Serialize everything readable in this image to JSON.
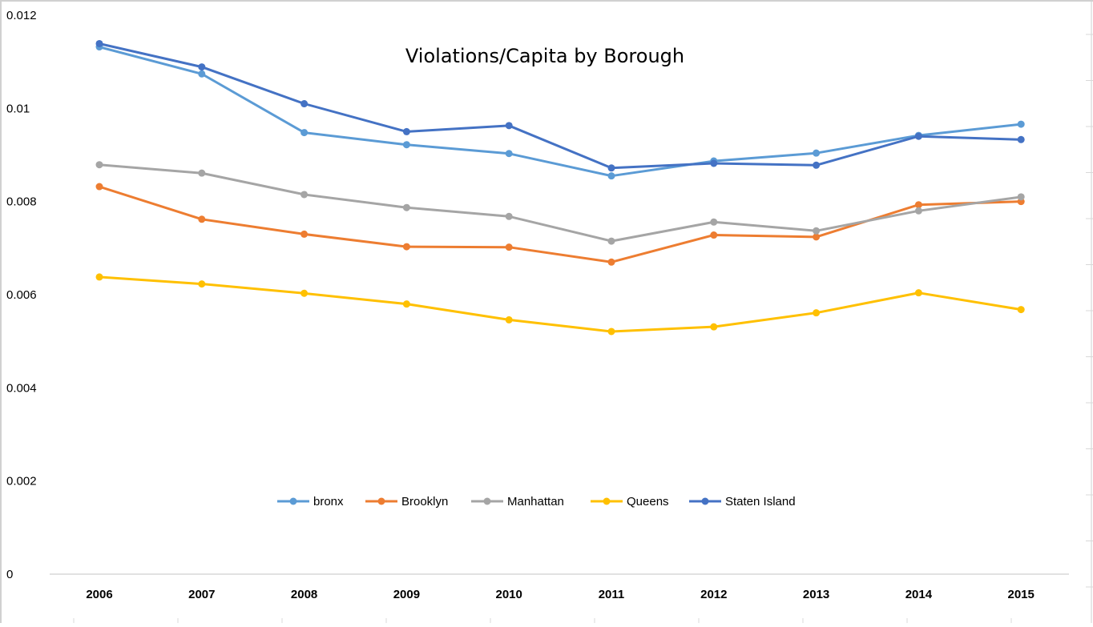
{
  "chart_data": {
    "type": "line",
    "title": "Violations/Capita by Borough",
    "xlabel": "",
    "ylabel": "",
    "categories": [
      "2006",
      "2007",
      "2008",
      "2009",
      "2010",
      "2011",
      "2012",
      "2013",
      "2014",
      "2015"
    ],
    "ylim": [
      0,
      0.012
    ],
    "y_ticks": [
      "0",
      "0.002",
      "0.004",
      "0.006",
      "0.008",
      "0.01",
      "0.012"
    ],
    "grid": false,
    "legend_position": "bottom-center",
    "series": [
      {
        "name": "bronx",
        "color": "#5B9BD5",
        "values": [
          0.01132,
          0.01074,
          0.00948,
          0.00922,
          0.00903,
          0.00855,
          0.00887,
          0.00904,
          0.00942,
          0.00966
        ]
      },
      {
        "name": "Brooklyn",
        "color": "#ED7D31",
        "values": [
          0.00832,
          0.00762,
          0.0073,
          0.00703,
          0.00702,
          0.0067,
          0.00728,
          0.00724,
          0.00793,
          0.008
        ]
      },
      {
        "name": "Manhattan",
        "color": "#A5A5A5",
        "values": [
          0.00879,
          0.00861,
          0.00815,
          0.00787,
          0.00768,
          0.00715,
          0.00756,
          0.00737,
          0.0078,
          0.0081
        ]
      },
      {
        "name": "Queens",
        "color": "#FFC000",
        "values": [
          0.00638,
          0.00623,
          0.00603,
          0.0058,
          0.00546,
          0.00521,
          0.00531,
          0.00561,
          0.00604,
          0.00568
        ]
      },
      {
        "name": "Staten Island",
        "color": "#4472C4",
        "values": [
          0.01139,
          0.01089,
          0.0101,
          0.0095,
          0.00963,
          0.00872,
          0.00882,
          0.00878,
          0.0094,
          0.00933
        ]
      }
    ]
  }
}
